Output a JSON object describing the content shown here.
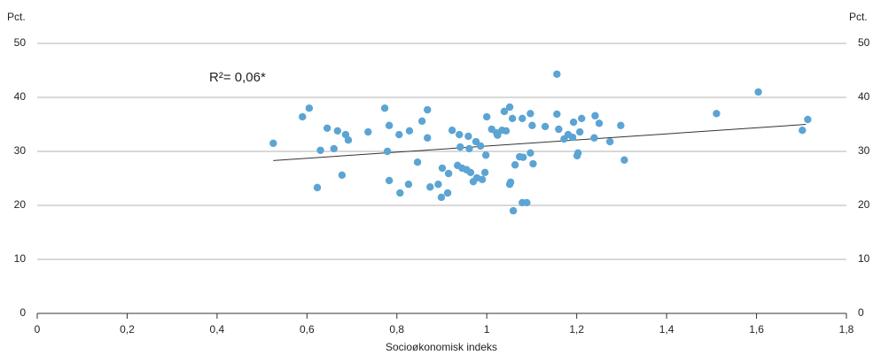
{
  "chart_data": {
    "type": "scatter",
    "y_label": "Pct.",
    "y2_label": "Pct.",
    "x_label": "Socioøkonomisk indeks",
    "annotation": "R²= 0,06*",
    "color": "#5ba4d4",
    "x": [
      0.525,
      0.59,
      0.605,
      0.63,
      0.623,
      0.645,
      0.66,
      0.668,
      0.678,
      0.686,
      0.692,
      0.736,
      0.773,
      0.783,
      0.779,
      0.783,
      0.805,
      0.807,
      0.828,
      0.826,
      0.846,
      0.856,
      0.868,
      0.868,
      0.874,
      0.892,
      0.901,
      0.899,
      0.913,
      0.915,
      0.923,
      0.935,
      0.939,
      0.941,
      0.945,
      0.955,
      0.959,
      0.961,
      0.964,
      0.97,
      0.976,
      0.978,
      0.986,
      0.99,
      0.996,
      0.998,
      1.0,
      1.011,
      1.022,
      1.024,
      1.034,
      1.039,
      1.043,
      1.051,
      1.051,
      1.053,
      1.057,
      1.059,
      1.063,
      1.073,
      1.079,
      1.079,
      1.081,
      1.089,
      1.097,
      1.097,
      1.103,
      1.101,
      1.13,
      1.156,
      1.156,
      1.16,
      1.172,
      1.181,
      1.191,
      1.193,
      1.201,
      1.203,
      1.207,
      1.211,
      1.239,
      1.241,
      1.25,
      1.274,
      1.298,
      1.306,
      1.511,
      1.604,
      1.702,
      1.714
    ],
    "values": [
      31.5,
      36.4,
      38.0,
      30.2,
      23.3,
      34.3,
      30.5,
      33.8,
      25.6,
      33.1,
      32.1,
      33.6,
      38.0,
      34.8,
      30.0,
      24.6,
      33.1,
      22.3,
      33.8,
      23.9,
      28.0,
      35.6,
      37.7,
      32.5,
      23.4,
      23.9,
      26.9,
      21.5,
      22.3,
      25.9,
      33.9,
      27.4,
      33.1,
      30.8,
      26.9,
      26.6,
      32.8,
      30.5,
      26.1,
      24.4,
      31.8,
      25.1,
      31.0,
      24.8,
      26.1,
      29.3,
      36.4,
      34.1,
      33.4,
      33.0,
      33.9,
      37.4,
      33.8,
      38.2,
      23.9,
      24.3,
      36.1,
      19.0,
      27.5,
      29.0,
      36.1,
      20.5,
      28.9,
      20.5,
      29.7,
      37.0,
      27.7,
      34.8,
      34.6,
      44.3,
      36.9,
      34.1,
      32.3,
      33.1,
      32.6,
      35.4,
      29.2,
      29.7,
      33.6,
      36.1,
      32.5,
      36.6,
      35.2,
      31.8,
      34.8,
      28.4,
      37.0,
      41.0,
      33.9,
      35.9
    ],
    "trendline": {
      "x": [
        0.525,
        1.71
      ],
      "y": [
        28.3,
        35.0
      ],
      "color": "#333333"
    },
    "xlim": [
      0,
      1.8
    ],
    "xticks": [
      0,
      {
        "value": 0.2,
        "label": "0,2"
      },
      {
        "value": 0.4,
        "label": "0,4"
      },
      {
        "value": 0.6,
        "label": "0,6"
      },
      {
        "value": 0.8,
        "label": "0,8"
      },
      1,
      {
        "value": 1.2,
        "label": "1,2"
      },
      {
        "value": 1.4,
        "label": "1,4"
      },
      {
        "value": 1.6,
        "label": "1,6"
      },
      {
        "value": 1.8,
        "label": "1,8"
      }
    ],
    "ylim": [
      0,
      50
    ],
    "yticks": [
      0,
      10,
      20,
      30,
      40,
      50
    ],
    "y2lim": [
      0,
      50
    ],
    "y2ticks": [
      0,
      10,
      20,
      30,
      40,
      50
    ],
    "grid": true
  }
}
